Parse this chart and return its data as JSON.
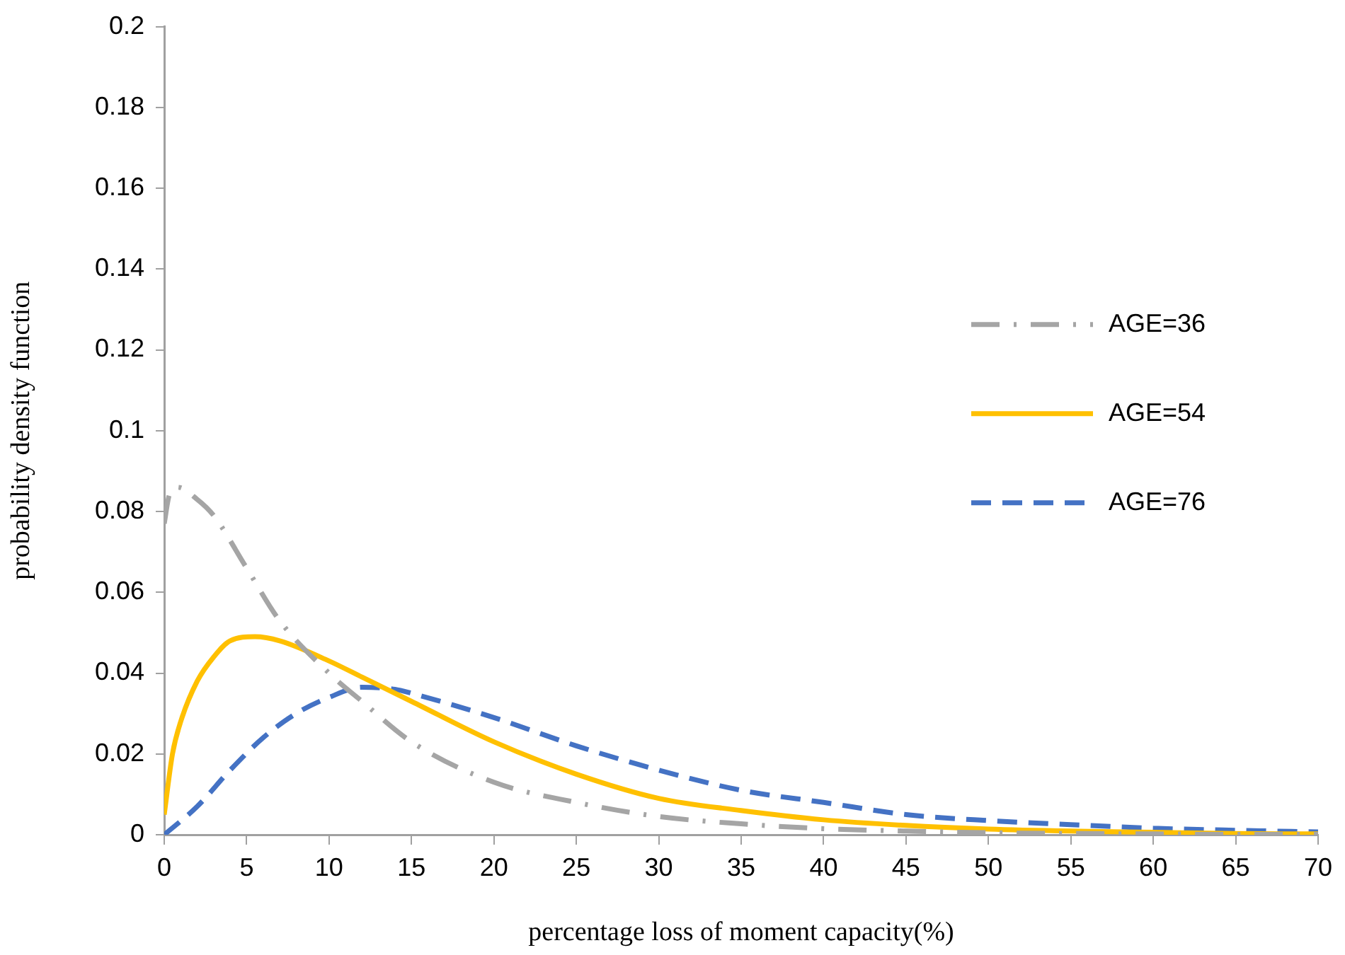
{
  "chart_data": {
    "type": "line",
    "xlabel": "percentage loss of moment capacity(%)",
    "ylabel": "probability density function",
    "xlim": [
      0,
      70
    ],
    "xticks": [
      0,
      5,
      10,
      15,
      20,
      25,
      30,
      35,
      40,
      45,
      50,
      55,
      60,
      65,
      70
    ],
    "ylim": [
      0,
      0.2
    ],
    "yticks": [
      0,
      0.02,
      0.04,
      0.06,
      0.08,
      0.1,
      0.12,
      0.14,
      0.16,
      0.18,
      0.2
    ],
    "grid": false,
    "legend": "right",
    "marker": "none",
    "series": [
      {
        "name": "AGE=36",
        "color": "#a5a5a5",
        "line_style": "dashdot",
        "x": [
          0,
          0.3,
          0.8,
          2,
          3,
          5,
          7,
          10,
          12,
          15,
          20,
          25,
          30,
          35,
          40,
          45,
          50,
          55,
          60,
          65,
          70
        ],
        "values": [
          0.077,
          0.084,
          0.086,
          0.083,
          0.079,
          0.066,
          0.053,
          0.04,
          0.033,
          0.023,
          0.013,
          0.008,
          0.0045,
          0.0027,
          0.0015,
          0.0009,
          0.0005,
          0.0003,
          0.0002,
          0.0001,
          0.0001
        ]
      },
      {
        "name": "AGE=54",
        "color": "#ffc000",
        "line_style": "solid",
        "x": [
          0,
          0.5,
          1,
          2,
          3,
          4,
          5.5,
          7,
          10,
          12,
          15,
          20,
          25,
          30,
          35,
          40,
          45,
          50,
          55,
          60,
          65,
          70
        ],
        "values": [
          0.005,
          0.02,
          0.028,
          0.038,
          0.044,
          0.048,
          0.049,
          0.048,
          0.043,
          0.039,
          0.033,
          0.023,
          0.015,
          0.009,
          0.006,
          0.0037,
          0.0023,
          0.0014,
          0.0009,
          0.0006,
          0.0003,
          0.0002
        ]
      },
      {
        "name": "AGE=76",
        "color": "#4472c4",
        "line_style": "dashed",
        "x": [
          0,
          2,
          4,
          6,
          8,
          10,
          12,
          14,
          15,
          20,
          25,
          30,
          35,
          40,
          45,
          50,
          55,
          60,
          65,
          70
        ],
        "values": [
          0,
          0.007,
          0.016,
          0.024,
          0.03,
          0.034,
          0.0365,
          0.036,
          0.035,
          0.029,
          0.022,
          0.016,
          0.011,
          0.008,
          0.005,
          0.0035,
          0.0025,
          0.0016,
          0.0011,
          0.0007
        ]
      }
    ]
  }
}
